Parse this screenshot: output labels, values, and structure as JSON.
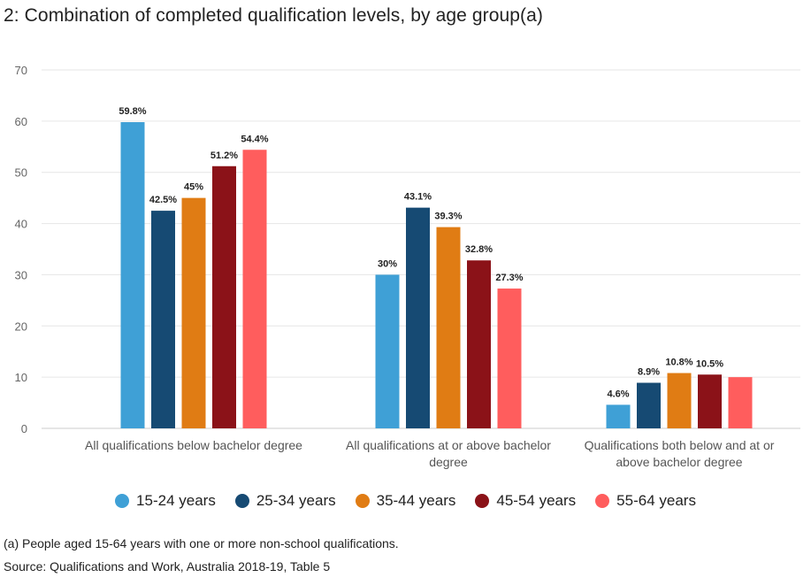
{
  "chart_data": {
    "type": "bar",
    "title": "2: Combination of completed qualification levels, by age group(a)",
    "categories": [
      [
        "All qualifications below bachelor degree"
      ],
      [
        "All qualifications at or above bachelor",
        "degree"
      ],
      [
        "Qualifications both below and at or",
        "above bachelor degree"
      ]
    ],
    "series": [
      {
        "name": "15-24 years",
        "color": "#3fa0d6",
        "values": [
          59.8,
          30.0,
          4.6
        ],
        "labels": [
          "59.8%",
          "30%",
          "4.6%"
        ]
      },
      {
        "name": "25-34 years",
        "color": "#164a73",
        "values": [
          42.5,
          43.1,
          8.9
        ],
        "labels": [
          "42.5%",
          "43.1%",
          "8.9%"
        ]
      },
      {
        "name": "35-44 years",
        "color": "#e07c14",
        "values": [
          45.0,
          39.3,
          10.8
        ],
        "labels": [
          "45%",
          "39.3%",
          "10.8%"
        ]
      },
      {
        "name": "45-54 years",
        "color": "#8b1218",
        "values": [
          51.2,
          32.8,
          10.5
        ],
        "labels": [
          "51.2%",
          "32.8%",
          "10.5%"
        ]
      },
      {
        "name": "55-64 years",
        "color": "#ff5d5d",
        "values": [
          54.4,
          27.3,
          10.0
        ],
        "labels": [
          "54.4%",
          "27.3%",
          ""
        ]
      }
    ],
    "ylim": [
      0,
      70
    ],
    "yticks": [
      0,
      10,
      20,
      30,
      40,
      50,
      60,
      70
    ],
    "xlabel": "",
    "ylabel": "",
    "grid": true,
    "legend": "bottom-center"
  },
  "footnote": "(a) People aged 15-64 years with one or more non-school qualifications.",
  "source": "Source: Qualifications and Work, Australia 2018-19, Table 5"
}
